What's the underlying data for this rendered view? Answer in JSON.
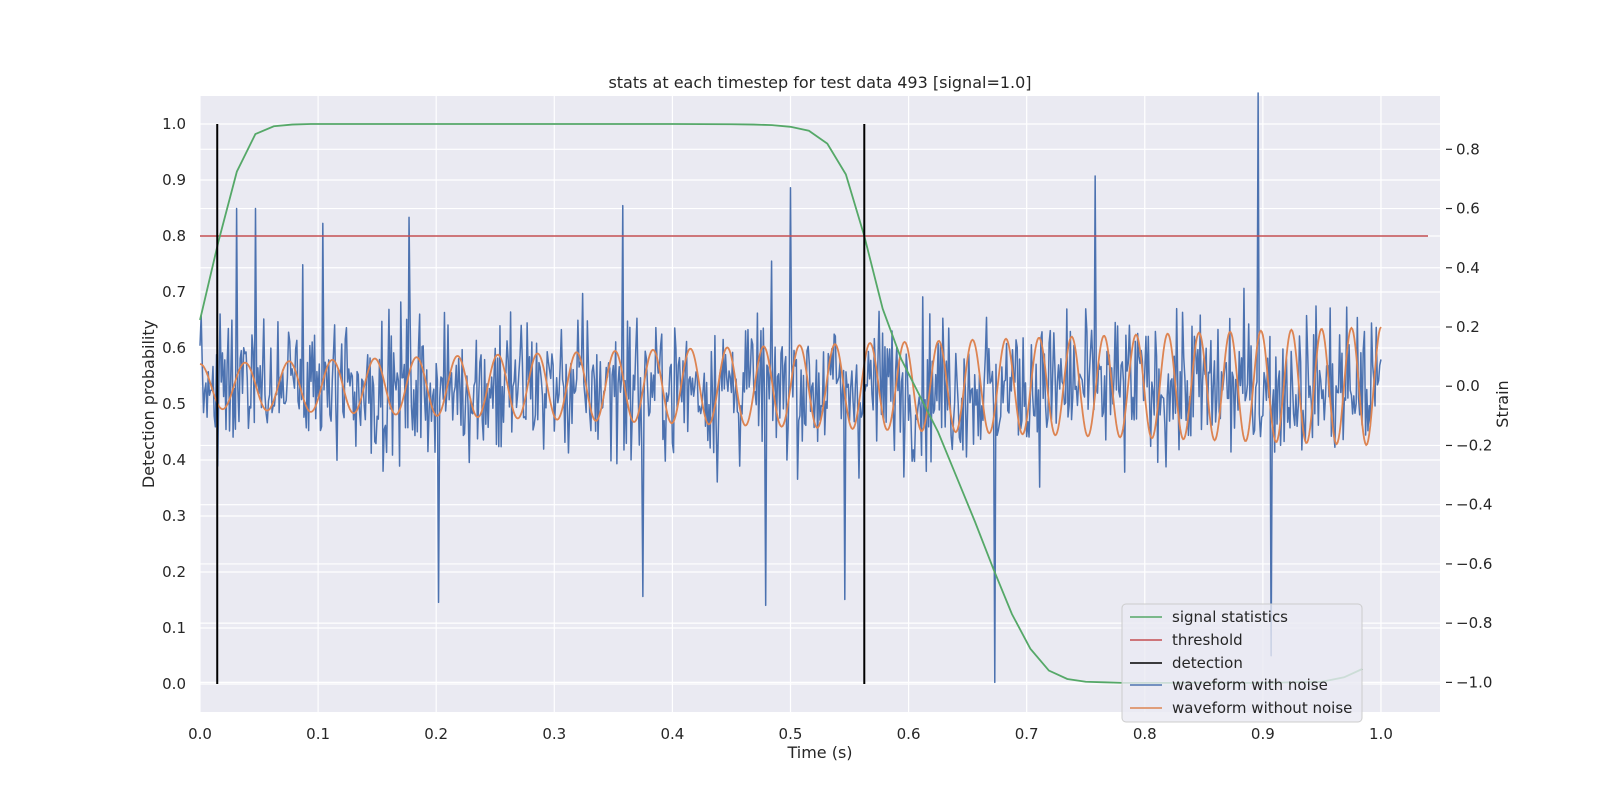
{
  "chart_data": {
    "type": "line",
    "title": "stats at each timestep for test data 493 [signal=1.0]",
    "xlabel": "Time (s)",
    "ylabel_left": "Detection probability",
    "ylabel_right": "Strain",
    "xlim": [
      0.0,
      1.05
    ],
    "ylim_left": [
      -0.05,
      1.05
    ],
    "ylim_right": [
      -1.1,
      0.98
    ],
    "x_ticks": [
      0.0,
      0.1,
      0.2,
      0.3,
      0.4,
      0.5,
      0.6,
      0.7,
      0.8,
      0.9,
      1.0
    ],
    "x_tick_labels": [
      "0.0",
      "0.1",
      "0.2",
      "0.3",
      "0.4",
      "0.5",
      "0.6",
      "0.7",
      "0.8",
      "0.9",
      "1.0"
    ],
    "y_left_ticks": [
      0.0,
      0.1,
      0.2,
      0.3,
      0.4,
      0.5,
      0.6,
      0.7,
      0.8,
      0.9,
      1.0
    ],
    "y_left_tick_labels": [
      "0.0",
      "0.1",
      "0.2",
      "0.3",
      "0.4",
      "0.5",
      "0.6",
      "0.7",
      "0.8",
      "0.9",
      "1.0"
    ],
    "y_right_ticks": [
      -1.0,
      -0.8,
      -0.6,
      -0.4,
      -0.2,
      0.0,
      0.2,
      0.4,
      0.6,
      0.8
    ],
    "y_right_tick_labels": [
      "−1.0",
      "−0.8",
      "−0.6",
      "−0.4",
      "−0.2",
      "0.0",
      "0.2",
      "0.4",
      "0.6",
      "0.8"
    ],
    "grid": true,
    "legend_position": "lower-right",
    "colors": {
      "background": "#eaeaf2",
      "grid": "#ffffff",
      "signal_statistics": "#55a868",
      "threshold": "#c44e52",
      "detection": "#000000",
      "waveform_with_noise": "#4c72b0",
      "waveform_without_noise": "#dd8452"
    },
    "series": [
      {
        "name": "signal statistics",
        "axis": "left",
        "x": [
          0.0,
          0.0156,
          0.0312,
          0.0469,
          0.0625,
          0.0781,
          0.0938,
          0.1094,
          0.125,
          0.2,
          0.3,
          0.4,
          0.45,
          0.4688,
          0.4844,
          0.5,
          0.5156,
          0.5312,
          0.5469,
          0.5625,
          0.5781,
          0.5938,
          0.6094,
          0.625,
          0.6406,
          0.6562,
          0.6719,
          0.6875,
          0.7031,
          0.7188,
          0.7344,
          0.75,
          0.7656,
          0.7812,
          0.8,
          0.85,
          0.9,
          0.95,
          0.9688,
          0.9844
        ],
        "values": [
          0.65,
          0.79,
          0.915,
          0.982,
          0.996,
          0.999,
          1.0,
          1.0,
          1.0,
          1.0,
          1.0,
          1.0,
          0.9995,
          0.999,
          0.998,
          0.995,
          0.988,
          0.965,
          0.91,
          0.8,
          0.67,
          0.58,
          0.515,
          0.45,
          0.37,
          0.29,
          0.205,
          0.125,
          0.063,
          0.024,
          0.009,
          0.004,
          0.003,
          0.002,
          0.002,
          0.002,
          0.002,
          0.004,
          0.012,
          0.027
        ]
      },
      {
        "name": "threshold",
        "axis": "left",
        "x": [
          0.0,
          1.05
        ],
        "values": [
          0.8,
          0.8
        ]
      },
      {
        "name": "detection",
        "axis": "left",
        "segments": [
          {
            "x": 0.0146,
            "y": [
              0.0,
              1.0
            ]
          },
          {
            "x": 0.5625,
            "y": [
              0.0,
              1.0
            ]
          }
        ]
      },
      {
        "name": "waveform with noise",
        "axis": "right",
        "x_start": 0.0,
        "x_end": 1.0,
        "peaks": [
          {
            "x": 0.0312,
            "y": 0.6
          },
          {
            "x": 0.0469,
            "y": 0.6
          },
          {
            "x": 0.1042,
            "y": 0.55
          },
          {
            "x": 0.1771,
            "y": 0.57
          },
          {
            "x": 0.2016,
            "y": -0.73
          },
          {
            "x": 0.3583,
            "y": 0.61
          },
          {
            "x": 0.375,
            "y": -0.71
          },
          {
            "x": 0.4792,
            "y": -0.74
          },
          {
            "x": 0.5,
            "y": 0.67
          },
          {
            "x": 0.5458,
            "y": -0.72
          },
          {
            "x": 0.6725,
            "y": -1.0
          },
          {
            "x": 0.7583,
            "y": 0.71
          },
          {
            "x": 0.8958,
            "y": 0.99
          },
          {
            "x": 0.9067,
            "y": -0.91
          }
        ],
        "std": 0.24,
        "seed": 493
      },
      {
        "name": "waveform without noise",
        "axis": "right",
        "x_start": 0.0,
        "x_end": 1.0,
        "amplitude_start": 0.075,
        "amplitude_end": 0.2,
        "frequency_start_hz": 26,
        "frequency_end_hz": 40
      }
    ]
  }
}
